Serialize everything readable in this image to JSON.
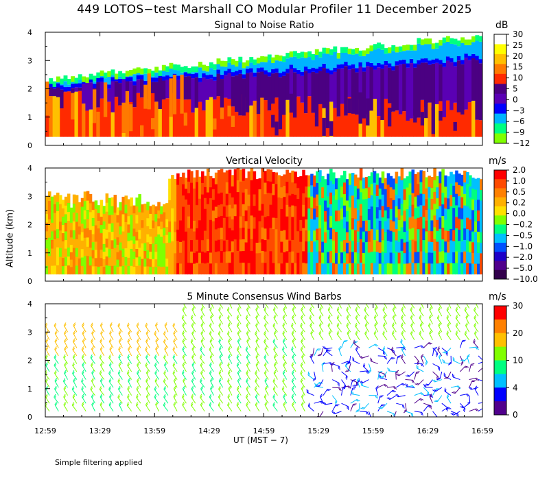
{
  "chart_data": [
    {
      "type": "heatmap",
      "title": "Signal to Noise Ratio",
      "ylabel": "Altitude (km)",
      "ylim": [
        0,
        4
      ],
      "yticks": [
        "0",
        "1",
        "2",
        "3",
        "4"
      ],
      "colorbar_unit": "dB",
      "colorbar_labels": [
        "30",
        "25",
        "20",
        "15",
        "10",
        "5",
        "0",
        "−3",
        "−6",
        "−9",
        "−12"
      ],
      "colorbar_colors": [
        "#ffffff",
        "#ffff00",
        "#ffc000",
        "#ff7a00",
        "#ff2a00",
        "#4b0082",
        "#5a00b4",
        "#0000ff",
        "#00b4ff",
        "#00ff80",
        "#80ff00"
      ]
    },
    {
      "type": "heatmap",
      "title": "Vertical Velocity",
      "ylabel": "Altitude (km)",
      "ylim": [
        0,
        4
      ],
      "yticks": [
        "0",
        "1",
        "2",
        "3",
        "4"
      ],
      "colorbar_unit": "m/s",
      "colorbar_labels": [
        "2.0",
        "1.0",
        "0.5",
        "0.2",
        "0.0",
        "−0.2",
        "−0.5",
        "−1.0",
        "−2.0",
        "−5.0",
        "−10.0"
      ],
      "colorbar_colors": [
        "#ff0000",
        "#ff4a00",
        "#ff8000",
        "#ffb000",
        "#ffe000",
        "#80ff00",
        "#00ff80",
        "#00c0ff",
        "#0050ff",
        "#1e00c8",
        "#50008c",
        "#32004b"
      ]
    },
    {
      "type": "scatter",
      "title": "5 Minute Consensus Wind Barbs",
      "ylabel": "Altitude (km)",
      "ylim": [
        0,
        4
      ],
      "yticks": [
        "0",
        "1",
        "2",
        "3",
        "4"
      ],
      "colorbar_unit": "m/s",
      "colorbar_labels": [
        "30",
        "20",
        "10",
        "4",
        "0"
      ],
      "colorbar_colors": [
        "#ff0000",
        "#ff8000",
        "#ffc000",
        "#80ff00",
        "#00ff80",
        "#00c0ff",
        "#0000ff",
        "#50008c"
      ]
    }
  ],
  "page": {
    "title": "449 LOTOS−test Marshall CO Modular Profiler 11 December 2025",
    "xticks": [
      "12:59",
      "13:29",
      "13:59",
      "14:29",
      "14:59",
      "15:29",
      "15:59",
      "16:29",
      "16:59"
    ],
    "xlabel": "UT  (MST − 7)",
    "ylabel": "Altitude (km)",
    "footnote": "Simple filtering applied"
  }
}
